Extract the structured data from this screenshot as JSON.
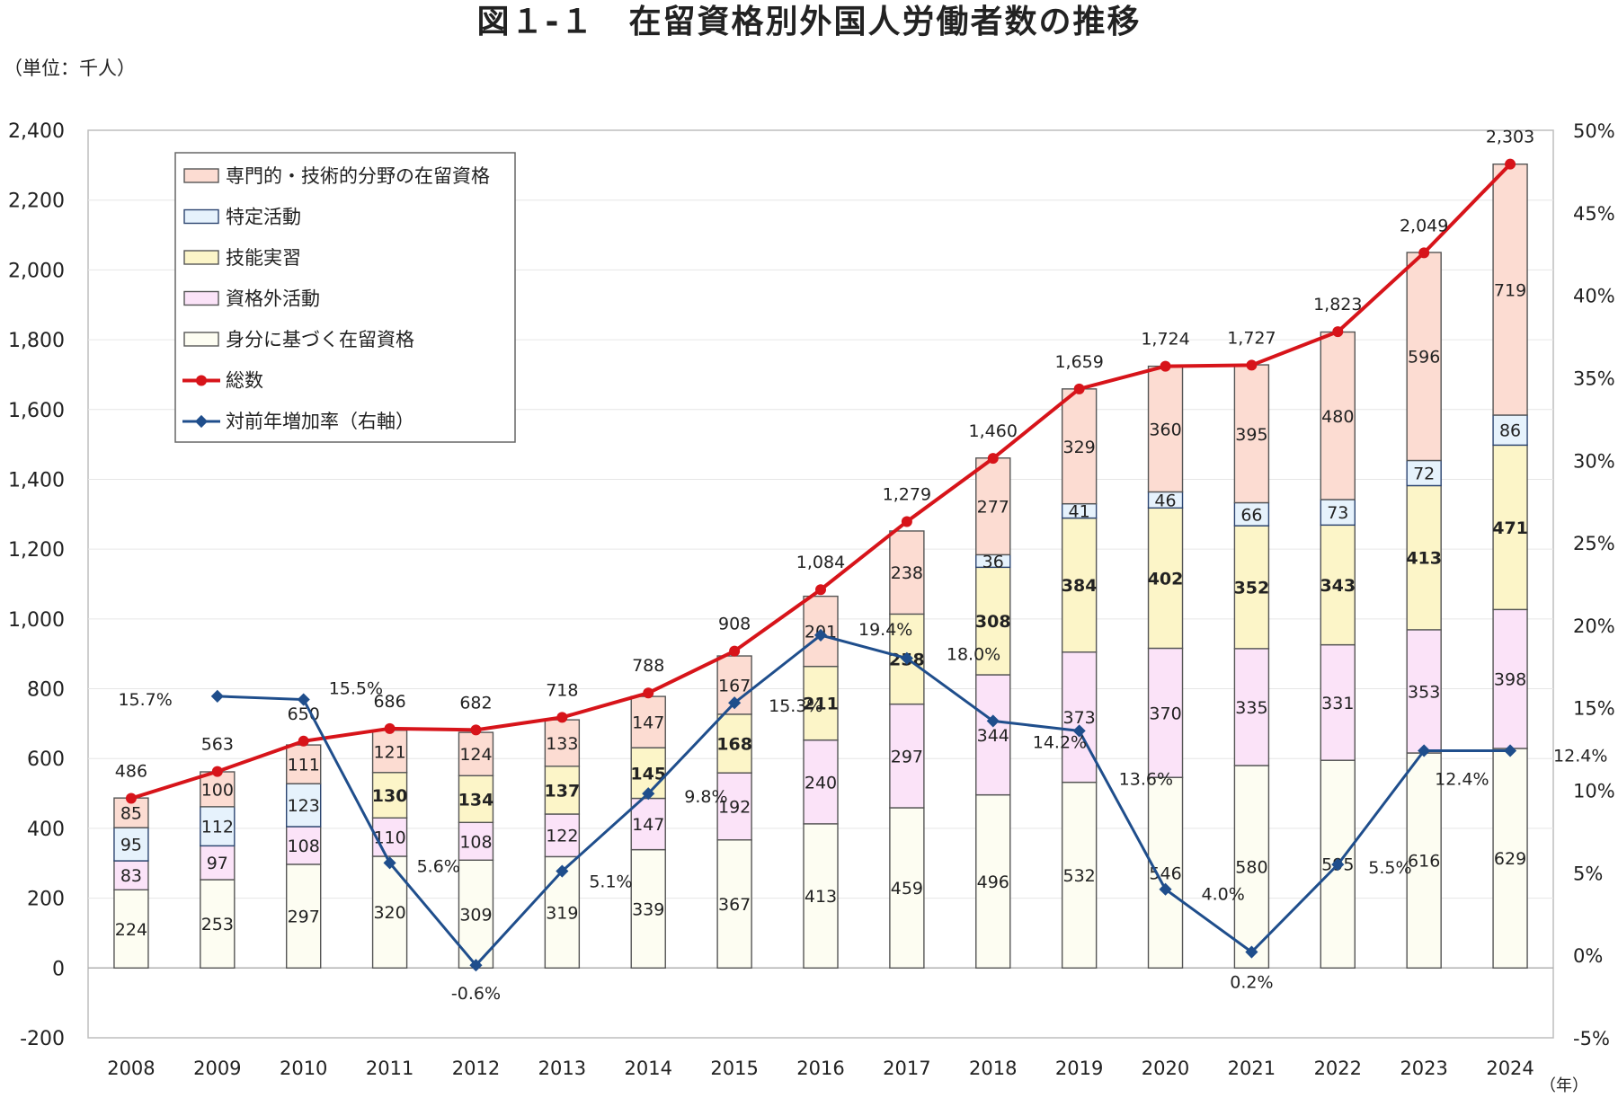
{
  "page": {
    "title": "図１-１　在留資格別外国人労働者数の推移",
    "unit_label": "（単位：千人）",
    "year_suffix": "（年）"
  },
  "chart_data": {
    "type": "bar",
    "stacked": true,
    "title": "図１-１　在留資格別外国人労働者数の推移",
    "ylabel": "（単位：千人）",
    "xlabel": "（年）",
    "ylim": [
      -200,
      2400
    ],
    "y_ticks": [
      -200,
      0,
      200,
      400,
      600,
      800,
      1000,
      1200,
      1400,
      1600,
      1800,
      2000,
      2200,
      2400
    ],
    "y2lim": [
      -5,
      50
    ],
    "y2_ticks": [
      -5,
      0,
      5,
      10,
      15,
      20,
      25,
      30,
      35,
      40,
      45,
      50
    ],
    "grid": true,
    "legend_position": "top-left",
    "categories": [
      "2008",
      "2009",
      "2010",
      "2011",
      "2012",
      "2013",
      "2014",
      "2015",
      "2016",
      "2017",
      "2018",
      "2019",
      "2020",
      "2021",
      "2022",
      "2023",
      "2024"
    ],
    "series": [
      {
        "name": "身分に基づく在留資格",
        "type": "bar",
        "color": "#fdfdf2",
        "stroke": "#555555",
        "values": [
          224,
          253,
          297,
          320,
          309,
          319,
          339,
          367,
          413,
          459,
          496,
          532,
          546,
          580,
          595,
          616,
          629
        ]
      },
      {
        "name": "資格外活動",
        "type": "bar",
        "color": "#fbe3f8",
        "stroke": "#555555",
        "values": [
          83,
          97,
          108,
          110,
          108,
          122,
          147,
          192,
          240,
          297,
          344,
          373,
          370,
          335,
          331,
          353,
          398
        ]
      },
      {
        "name": "技能実習",
        "type": "bar",
        "color": "#fcf5c8",
        "stroke": "#555555",
        "values": [
          null,
          null,
          null,
          130,
          134,
          137,
          145,
          168,
          211,
          258,
          308,
          384,
          402,
          352,
          343,
          413,
          471
        ]
      },
      {
        "name": "特定活動",
        "type": "bar",
        "color": "#e6f2fc",
        "stroke": "#2b4470",
        "values": [
          95,
          112,
          123,
          null,
          null,
          null,
          null,
          null,
          null,
          null,
          36,
          41,
          46,
          66,
          73,
          72,
          86
        ]
      },
      {
        "name": "専門的・技術的分野の在留資格",
        "type": "bar",
        "color": "#fcdcd2",
        "stroke": "#555555",
        "values": [
          85,
          100,
          111,
          121,
          124,
          133,
          147,
          167,
          201,
          238,
          277,
          329,
          360,
          395,
          480,
          596,
          719
        ]
      },
      {
        "name": "総数",
        "type": "line",
        "axis": "left",
        "color": "#d7141a",
        "values": [
          486,
          563,
          650,
          686,
          682,
          718,
          788,
          908,
          1084,
          1279,
          1460,
          1659,
          1724,
          1727,
          1823,
          2049,
          2303
        ],
        "labels": [
          "486",
          "563",
          "650",
          "686",
          "682",
          "718",
          "788",
          "908",
          "1,084",
          "1,279",
          "1,460",
          "1,659",
          "1,724",
          "1,727",
          "1,823",
          "2,049",
          "2,303"
        ]
      },
      {
        "name": "対前年増加率（右軸）",
        "type": "line",
        "axis": "right",
        "color": "#1f4e8c",
        "values": [
          null,
          15.7,
          15.5,
          5.6,
          -0.6,
          5.1,
          9.8,
          15.3,
          19.4,
          18.0,
          14.2,
          13.6,
          4.0,
          0.2,
          5.5,
          12.4,
          12.4
        ],
        "labels": [
          "",
          "15.7%",
          "15.5%",
          "5.6%",
          "-0.6%",
          "5.1%",
          "9.8%",
          "15.3%",
          "19.4%",
          "18.0%",
          "14.2%",
          "13.6%",
          "4.0%",
          "0.2%",
          "5.5%",
          "12.4%",
          "12.4%"
        ]
      }
    ],
    "y_tick_labels": [
      "-200",
      "0",
      "200",
      "400",
      "600",
      "800",
      "1,000",
      "1,200",
      "1,400",
      "1,600",
      "1,800",
      "2,000",
      "2,200",
      "2,400"
    ],
    "y2_tick_labels": [
      "-5%",
      "0%",
      "5%",
      "10%",
      "15%",
      "20%",
      "25%",
      "30%",
      "35%",
      "40%",
      "45%",
      "50%"
    ]
  }
}
